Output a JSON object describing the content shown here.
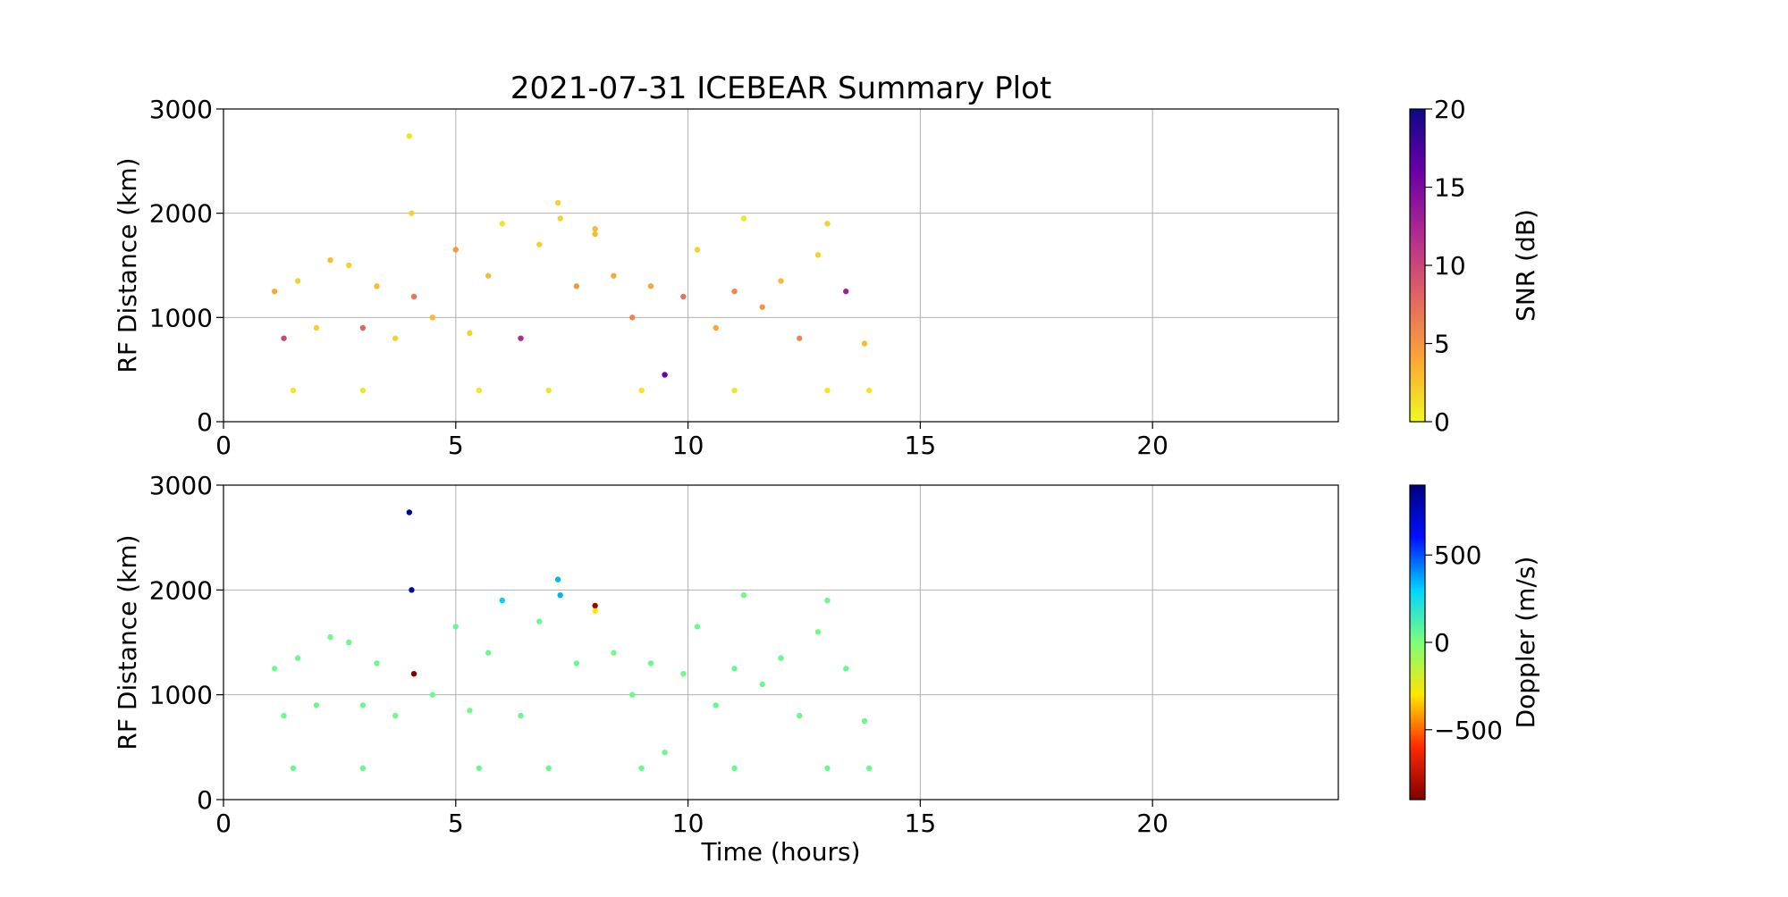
{
  "chart_data": [
    {
      "type": "scatter",
      "title": "2021-07-31 ICEBEAR Summary Plot",
      "ylabel": "RF Distance (km)",
      "xlim": [
        0,
        24
      ],
      "xticks": [
        0,
        5,
        10,
        15,
        20
      ],
      "ylim": [
        0,
        3000
      ],
      "yticks": [
        0,
        1000,
        2000,
        3000
      ],
      "grid": true,
      "x": [
        1.1,
        1.3,
        1.6,
        2.0,
        2.3,
        2.7,
        3.0,
        3.3,
        3.7,
        4.0,
        4.05,
        4.1,
        4.5,
        5.0,
        5.3,
        5.7,
        6.0,
        6.4,
        6.8,
        7.2,
        7.25,
        7.6,
        8.0,
        8.0,
        8.4,
        8.8,
        9.2,
        9.5,
        9.9,
        10.2,
        10.6,
        11.0,
        11.2,
        11.6,
        12.0,
        12.4,
        12.8,
        13.0,
        13.4,
        13.8,
        1.5,
        3.0,
        5.5,
        7.0,
        9.0,
        11.0,
        13.0,
        13.9
      ],
      "y": [
        1250,
        800,
        1350,
        900,
        1550,
        1500,
        900,
        1300,
        800,
        2740,
        2000,
        1200,
        1000,
        1650,
        850,
        1400,
        1900,
        800,
        1700,
        2100,
        1950,
        1300,
        1850,
        1800,
        1400,
        1000,
        1300,
        450,
        1200,
        1650,
        900,
        1250,
        1950,
        1100,
        1350,
        800,
        1600,
        1900,
        1250,
        750,
        300,
        300,
        300,
        300,
        300,
        300,
        300,
        300
      ],
      "c": [
        4,
        10,
        2,
        2,
        3,
        2,
        8,
        3,
        2,
        1,
        2,
        7,
        3,
        5,
        2,
        3,
        1,
        12,
        2,
        2,
        2,
        5,
        3,
        3,
        4,
        6,
        4,
        16,
        7,
        2,
        4,
        6,
        1,
        5,
        3,
        6,
        2,
        2,
        13,
        3,
        1,
        1,
        1,
        1,
        1,
        1,
        1,
        1
      ],
      "colorbar": {
        "label": "SNR (dB)",
        "lim": [
          0,
          20
        ],
        "ticks": [
          0,
          5,
          10,
          15,
          20
        ],
        "colormap": [
          "#f0f921",
          "#fca636",
          "#e16462",
          "#b12a90",
          "#6a00a8",
          "#0d0887"
        ]
      }
    },
    {
      "type": "scatter",
      "ylabel": "RF Distance (km)",
      "xlabel": "Time (hours)",
      "xlim": [
        0,
        24
      ],
      "xticks": [
        0,
        5,
        10,
        15,
        20
      ],
      "ylim": [
        0,
        3000
      ],
      "yticks": [
        0,
        1000,
        2000,
        3000
      ],
      "grid": true,
      "x": [
        1.1,
        1.3,
        1.6,
        2.0,
        2.3,
        2.7,
        3.0,
        3.3,
        3.7,
        4.0,
        4.05,
        4.1,
        4.5,
        5.0,
        5.3,
        5.7,
        6.0,
        6.4,
        6.8,
        7.2,
        7.25,
        7.6,
        8.0,
        8.0,
        8.4,
        8.8,
        9.2,
        9.5,
        9.9,
        10.2,
        10.6,
        11.0,
        11.2,
        11.6,
        12.0,
        12.4,
        12.8,
        13.0,
        13.4,
        13.8,
        1.5,
        3.0,
        5.5,
        7.0,
        9.0,
        11.0,
        13.0,
        13.9
      ],
      "y": [
        1250,
        800,
        1350,
        900,
        1550,
        1500,
        900,
        1300,
        800,
        2740,
        2000,
        1200,
        1000,
        1650,
        850,
        1400,
        1900,
        800,
        1700,
        2100,
        1950,
        1300,
        1850,
        1800,
        1400,
        1000,
        1300,
        450,
        1200,
        1650,
        900,
        1250,
        1950,
        1100,
        1350,
        800,
        1600,
        1900,
        1250,
        750,
        300,
        300,
        300,
        300,
        300,
        300,
        300,
        300
      ],
      "c": [
        30,
        40,
        50,
        40,
        30,
        40,
        50,
        40,
        30,
        850,
        800,
        -900,
        40,
        50,
        30,
        40,
        300,
        50,
        40,
        350,
        350,
        40,
        -850,
        -300,
        30,
        40,
        50,
        40,
        30,
        40,
        50,
        40,
        30,
        40,
        50,
        40,
        30,
        40,
        50,
        40,
        40,
        40,
        40,
        40,
        40,
        40,
        40,
        40
      ],
      "colorbar": {
        "label": "Doppler (m/s)",
        "lim": [
          -900,
          900
        ],
        "ticks": [
          {
            "value": -500,
            "label": "−500"
          },
          0,
          500
        ],
        "colormap": [
          "#7f0000",
          "#ff2900",
          "#ffe600",
          "#7dff7a",
          "#00d4ff",
          "#0010ff",
          "#00007f"
        ]
      }
    }
  ]
}
